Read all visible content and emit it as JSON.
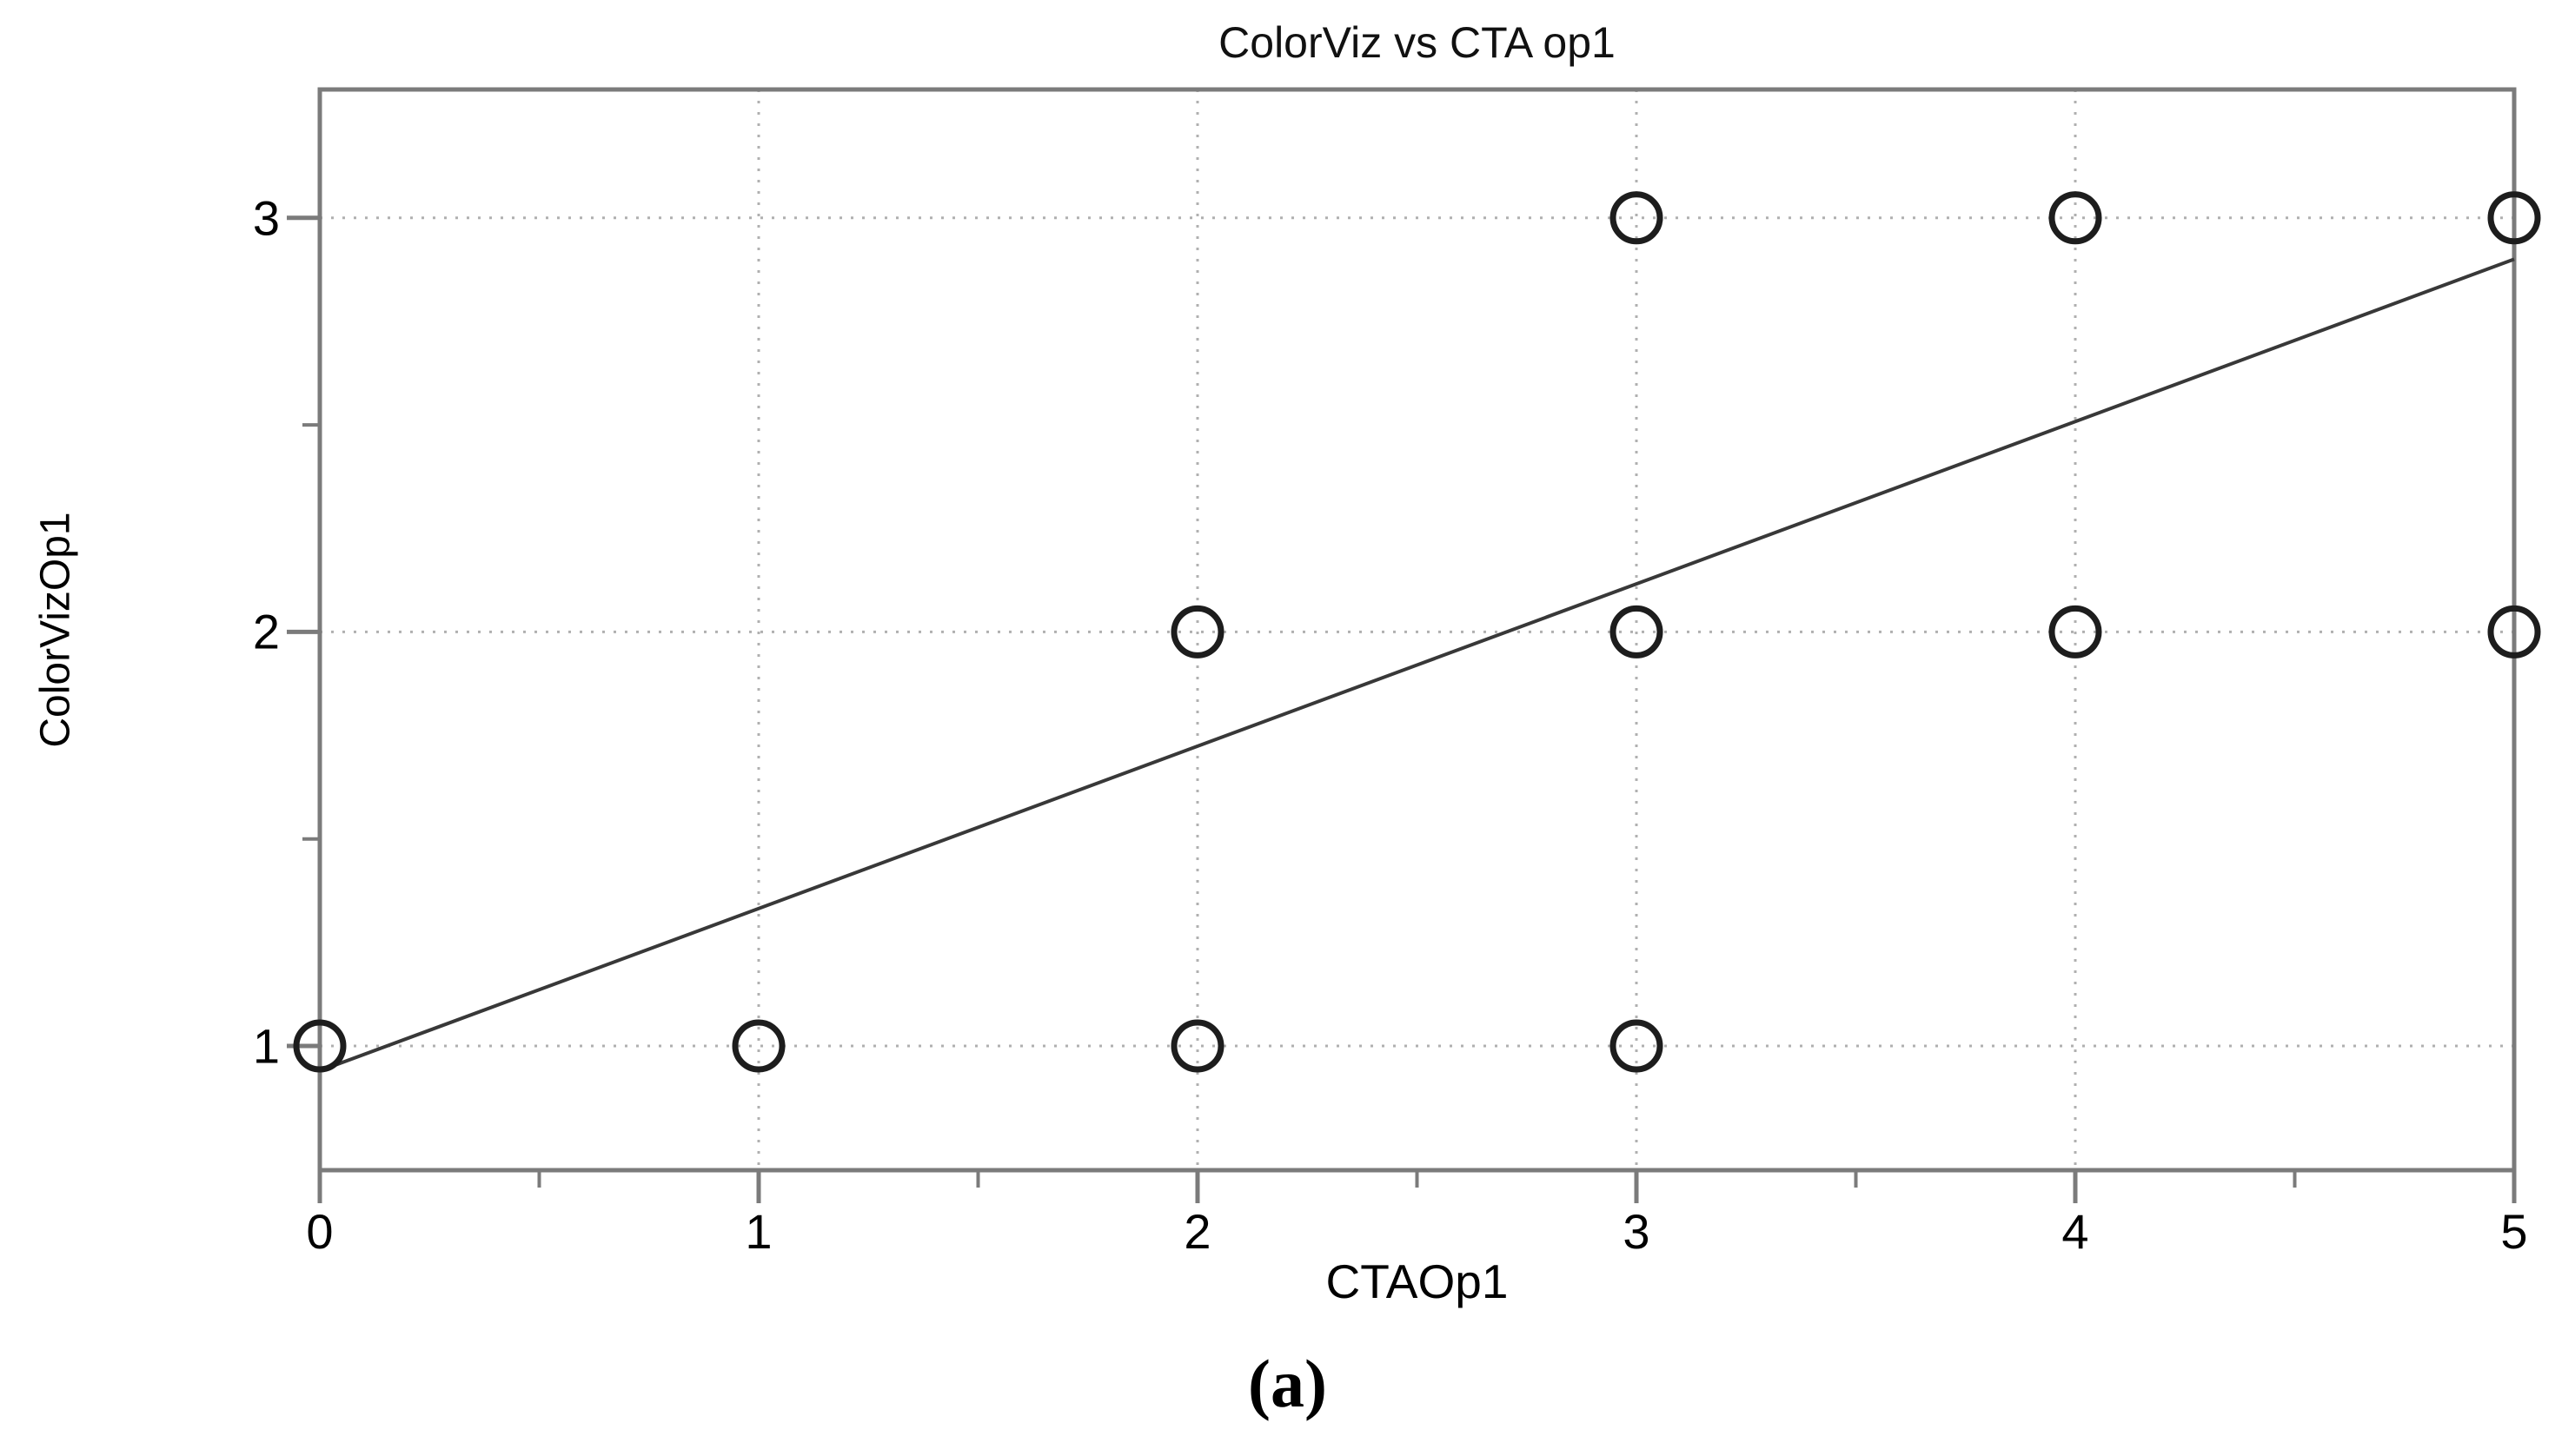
{
  "figure": {
    "caption": "(a)"
  },
  "chart_data": {
    "type": "scatter",
    "title": "ColorViz vs CTA op1",
    "xlabel": "CTAOp1",
    "ylabel": "ColorVizOp1",
    "xlim": [
      0,
      5
    ],
    "ylim": [
      0.7,
      3.31
    ],
    "x_ticks": [
      0,
      1,
      2,
      3,
      4,
      5
    ],
    "x_minor_ticks": [
      0.5,
      1.5,
      2.5,
      3.5,
      4.5
    ],
    "y_ticks": [
      1,
      2,
      3
    ],
    "y_minor_ticks": [
      1.5,
      2.5
    ],
    "grid_x": [
      1,
      2,
      3,
      4
    ],
    "grid_y": [
      1,
      2,
      3
    ],
    "grid_style": "dotted",
    "legend": "none",
    "marker": "open-circle",
    "points": [
      [
        0,
        1
      ],
      [
        1,
        1
      ],
      [
        2,
        1
      ],
      [
        3,
        1
      ],
      [
        2,
        2
      ],
      [
        3,
        2
      ],
      [
        4,
        2
      ],
      [
        5,
        2
      ],
      [
        3,
        3
      ],
      [
        4,
        3
      ],
      [
        5,
        3
      ]
    ],
    "fit_line": {
      "x1": 0,
      "y1": 0.94,
      "x2": 5,
      "y2": 2.9
    },
    "colors": {
      "frame": "#7b7b7b",
      "grid": "#b0b0b0",
      "marker": "#1d1d1d",
      "fit_line": "#383838",
      "text": "#000000"
    }
  }
}
